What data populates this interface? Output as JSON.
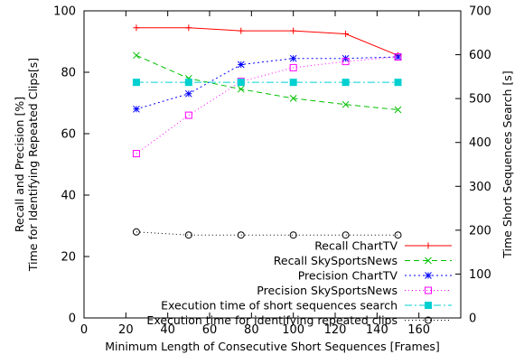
{
  "chart_data": {
    "type": "line",
    "xlabel": "Minimum Length of Consecutive Short Sequences [Frames]",
    "ylabel_left": [
      "Recall and Precision [%]",
      "Time for Identifying Repeated Clips[s]"
    ],
    "ylabel_right": "Time Short Sequences Search [s]",
    "xlim": [
      0,
      180
    ],
    "ylim_left": [
      0,
      100
    ],
    "ylim_right": [
      0,
      700
    ],
    "x_ticks": [
      0,
      20,
      40,
      60,
      80,
      100,
      120,
      140,
      160
    ],
    "y_left_ticks": [
      0,
      20,
      40,
      60,
      80,
      100
    ],
    "y_right_ticks": [
      0,
      100,
      200,
      300,
      400,
      500,
      600,
      700
    ],
    "grid": false,
    "legend_position": "bottom-right",
    "series": [
      {
        "name": "Recall ChartTV",
        "axis": "left",
        "color": "#ff0000",
        "dash": "",
        "marker": "plus",
        "x": [
          25,
          50,
          75,
          100,
          125,
          150
        ],
        "y": [
          94.5,
          94.5,
          93.5,
          93.5,
          92.5,
          85.5
        ]
      },
      {
        "name": "Recall SkySportsNews",
        "axis": "left",
        "color": "#00c000",
        "dash": "6,4",
        "marker": "cross",
        "x": [
          25,
          50,
          75,
          100,
          125,
          150
        ],
        "y": [
          85.5,
          78,
          74.5,
          71.5,
          69.5,
          67.8
        ]
      },
      {
        "name": "Precision ChartTV",
        "axis": "left",
        "color": "#0000ff",
        "dash": "2,3",
        "marker": "star",
        "x": [
          25,
          50,
          75,
          100,
          125,
          150
        ],
        "y": [
          68,
          73,
          82.5,
          84.5,
          84.5,
          85
        ]
      },
      {
        "name": "Precision SkySportsNews",
        "axis": "left",
        "color": "#ff00ff",
        "dash": "1,3",
        "marker": "square",
        "x": [
          25,
          50,
          75,
          100,
          125,
          150
        ],
        "y": [
          53.5,
          66,
          77,
          81.5,
          83.5,
          85
        ]
      },
      {
        "name": "Execution time of short sequences search",
        "axis": "right",
        "color": "#00d0d0",
        "dash": "8,3,2,3",
        "marker": "filled-square",
        "x": [
          25,
          50,
          75,
          100,
          125,
          150
        ],
        "y": [
          537,
          537,
          537,
          537,
          537,
          537
        ]
      },
      {
        "name": "Execution time for identifying repeated clips",
        "axis": "left",
        "color": "#000000",
        "dash": "1,3",
        "marker": "circle",
        "x": [
          25,
          50,
          75,
          100,
          125,
          150
        ],
        "y": [
          28,
          27,
          27,
          27,
          27,
          27
        ]
      }
    ]
  }
}
